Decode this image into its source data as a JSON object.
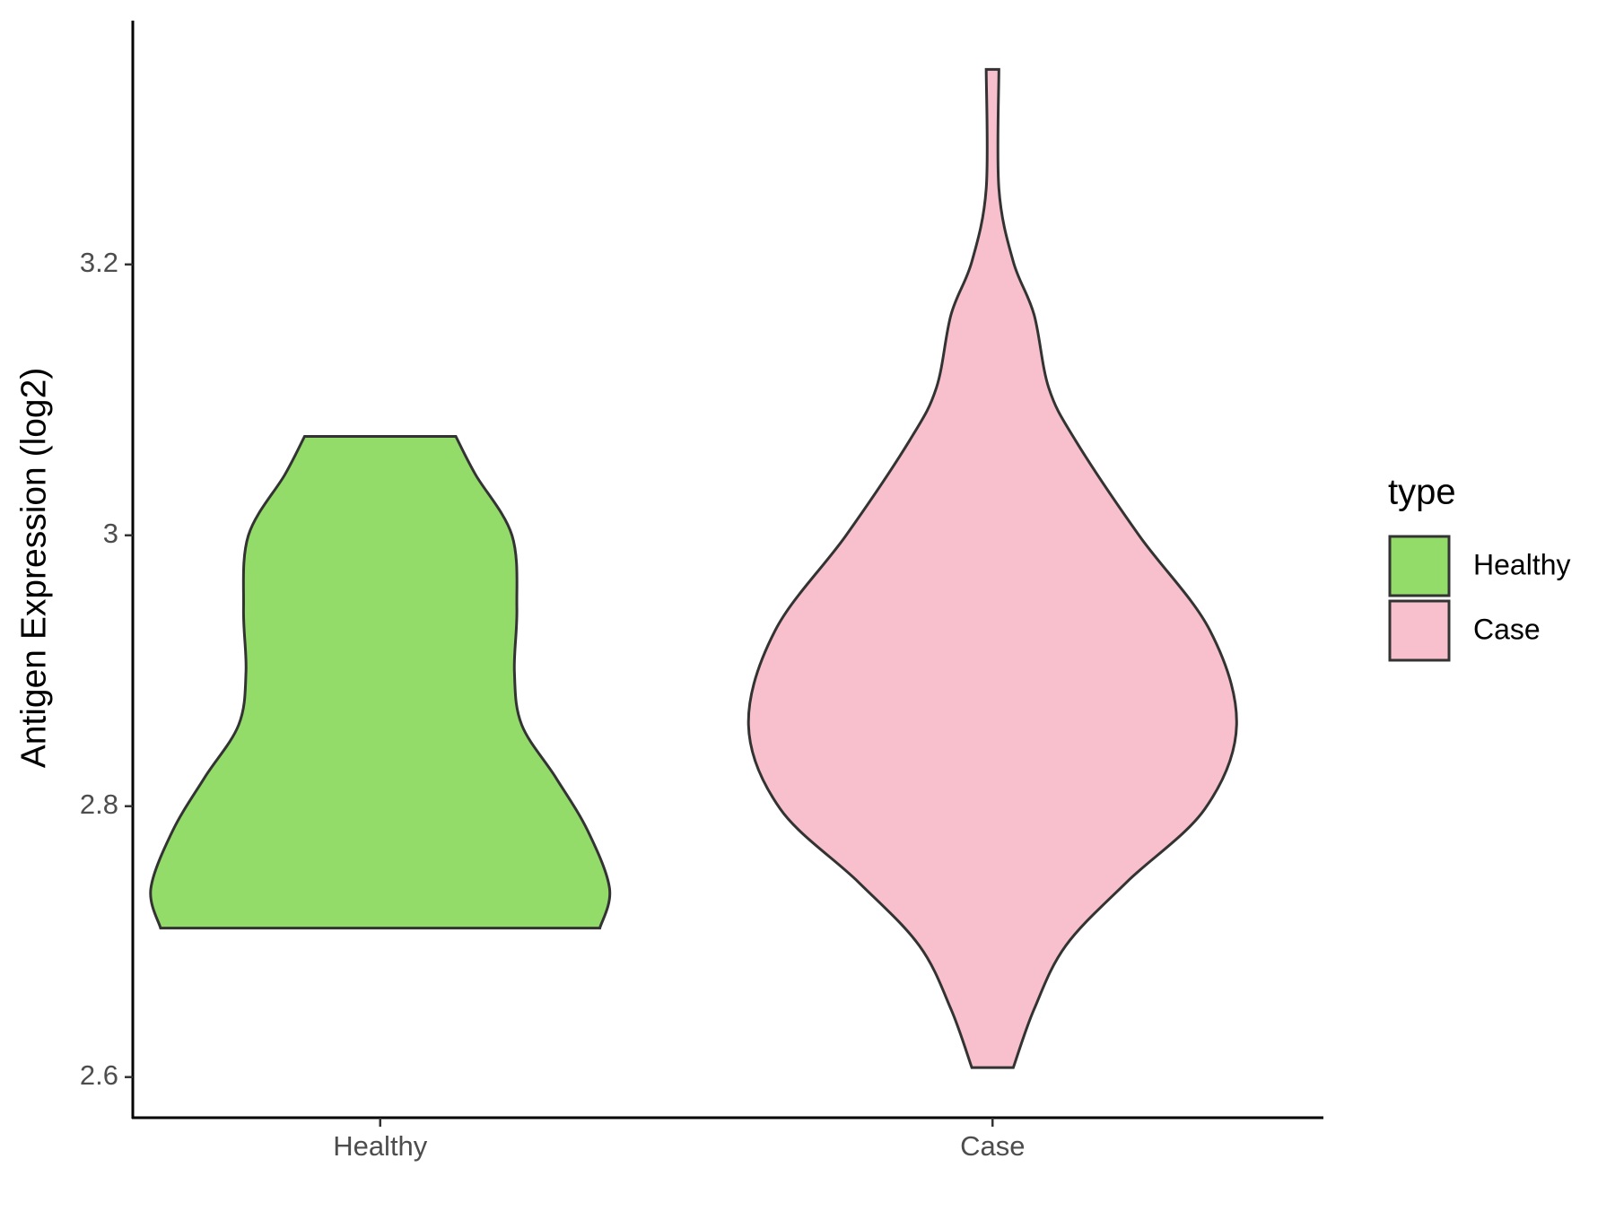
{
  "chart_data": {
    "type": "violin",
    "y_label": "Antigen Expression (log2)",
    "categories": [
      "Healthy",
      "Case"
    ],
    "legend_title": "type",
    "ylim": [
      2.57,
      3.38
    ],
    "yticks": [
      2.6,
      2.8,
      3.0,
      3.2
    ],
    "series": [
      {
        "name": "Healthy",
        "color": "#93dc6a",
        "y": [
          3.073,
          3.045,
          3.0,
          2.946,
          2.899,
          2.86,
          2.821,
          2.782,
          2.739,
          2.71
        ],
        "density": [
          0.31,
          0.39,
          0.54,
          0.56,
          0.55,
          0.58,
          0.72,
          0.85,
          0.94,
          0.9
        ]
      },
      {
        "name": "Case",
        "color": "#f7c0cc",
        "y": [
          3.344,
          3.256,
          3.202,
          3.163,
          3.109,
          3.07,
          3.0,
          2.93,
          2.86,
          2.798,
          2.744,
          2.697,
          2.65,
          2.607
        ],
        "density": [
          0.026,
          0.026,
          0.085,
          0.17,
          0.23,
          0.34,
          0.6,
          0.89,
          1.0,
          0.87,
          0.55,
          0.3,
          0.17,
          0.085
        ]
      }
    ]
  }
}
